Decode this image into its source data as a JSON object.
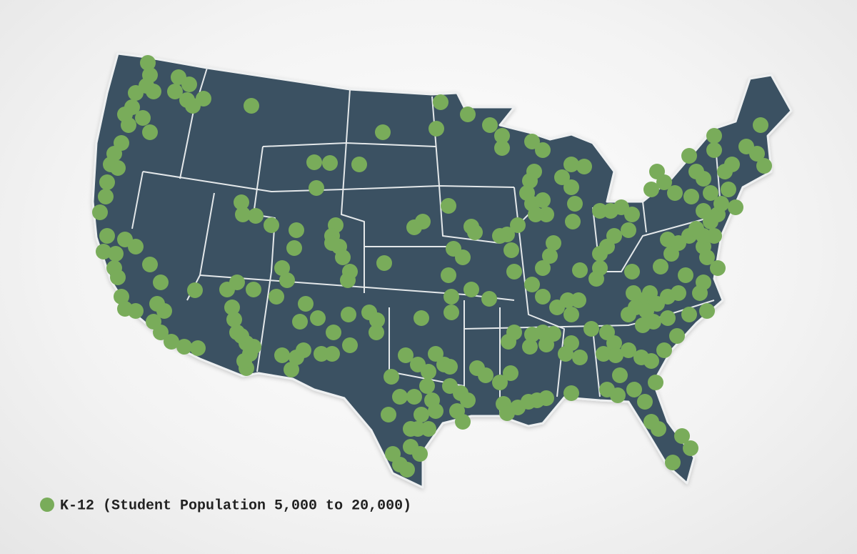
{
  "legend": {
    "label": "K-12 (Student Population 5,000 to 20,000)",
    "marker_color": "#79ac5a"
  }
}
